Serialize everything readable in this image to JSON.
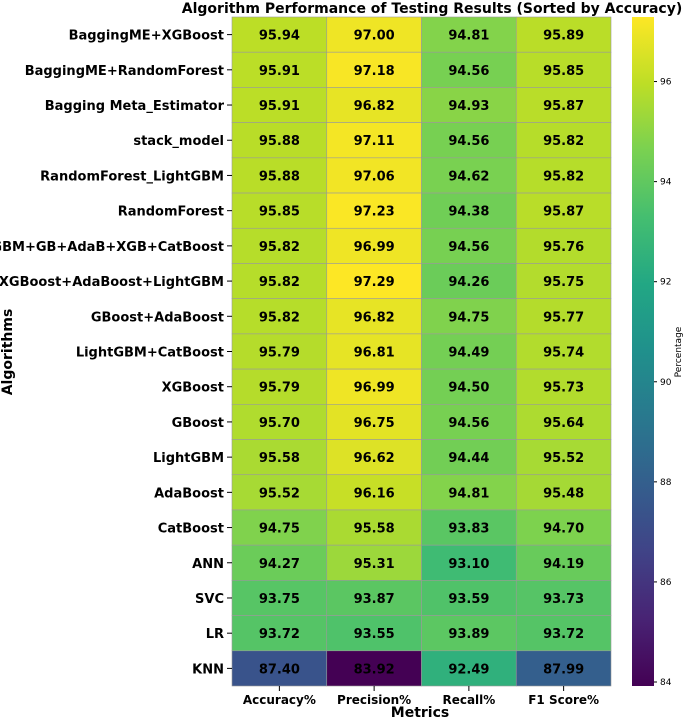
{
  "chart_data": {
    "type": "heatmap",
    "title": "Algorithm Performance of Testing Results (Sorted by Accuracy)",
    "xlabel": "Metrics",
    "ylabel": "Algorithms",
    "colorbar_label": "Percentage",
    "colormap": "viridis",
    "vmin": 83.92,
    "vmax": 97.29,
    "colorbar_ticks": [
      84,
      86,
      88,
      90,
      92,
      94,
      96
    ],
    "columns": [
      "Accuracy%",
      "Precision%",
      "Recall%",
      "F1 Score%"
    ],
    "rows": [
      {
        "algorithm": "BaggingME+XGBoost",
        "values": [
          "95.94",
          "97.00",
          "94.81",
          "95.89"
        ]
      },
      {
        "algorithm": "BaggingME+RandomForest",
        "values": [
          "95.91",
          "97.18",
          "94.56",
          "95.85"
        ]
      },
      {
        "algorithm": "Bagging Meta_Estimator",
        "values": [
          "95.91",
          "96.82",
          "94.93",
          "95.87"
        ]
      },
      {
        "algorithm": "stack_model",
        "values": [
          "95.88",
          "97.11",
          "94.56",
          "95.82"
        ]
      },
      {
        "algorithm": "RandomForest_LightGBM",
        "values": [
          "95.88",
          "97.06",
          "94.62",
          "95.82"
        ]
      },
      {
        "algorithm": "RandomForest",
        "values": [
          "95.85",
          "97.23",
          "94.38",
          "95.87"
        ]
      },
      {
        "algorithm": "LGBM+GB+AdaB+XGB+CatBoost",
        "values": [
          "95.82",
          "96.99",
          "94.56",
          "95.76"
        ]
      },
      {
        "algorithm": "XGBoost+AdaBoost+LightGBM",
        "values": [
          "95.82",
          "97.29",
          "94.26",
          "95.75"
        ]
      },
      {
        "algorithm": "GBoost+AdaBoost",
        "values": [
          "95.82",
          "96.82",
          "94.75",
          "95.77"
        ]
      },
      {
        "algorithm": "LightGBM+CatBoost",
        "values": [
          "95.79",
          "96.81",
          "94.49",
          "95.74"
        ]
      },
      {
        "algorithm": "XGBoost",
        "values": [
          "95.79",
          "96.99",
          "94.50",
          "95.73"
        ]
      },
      {
        "algorithm": "GBoost",
        "values": [
          "95.70",
          "96.75",
          "94.56",
          "95.64"
        ]
      },
      {
        "algorithm": "LightGBM",
        "values": [
          "95.58",
          "96.62",
          "94.44",
          "95.52"
        ]
      },
      {
        "algorithm": "AdaBoost",
        "values": [
          "95.52",
          "96.16",
          "94.81",
          "95.48"
        ]
      },
      {
        "algorithm": "CatBoost",
        "values": [
          "94.75",
          "95.58",
          "93.83",
          "94.70"
        ]
      },
      {
        "algorithm": "ANN",
        "values": [
          "94.27",
          "95.31",
          "93.10",
          "94.19"
        ]
      },
      {
        "algorithm": "SVC",
        "values": [
          "93.75",
          "93.87",
          "93.59",
          "93.73"
        ]
      },
      {
        "algorithm": "LR",
        "values": [
          "93.72",
          "93.55",
          "93.89",
          "93.72"
        ]
      },
      {
        "algorithm": "KNN",
        "values": [
          "87.40",
          "83.92",
          "92.49",
          "87.99"
        ]
      }
    ]
  }
}
